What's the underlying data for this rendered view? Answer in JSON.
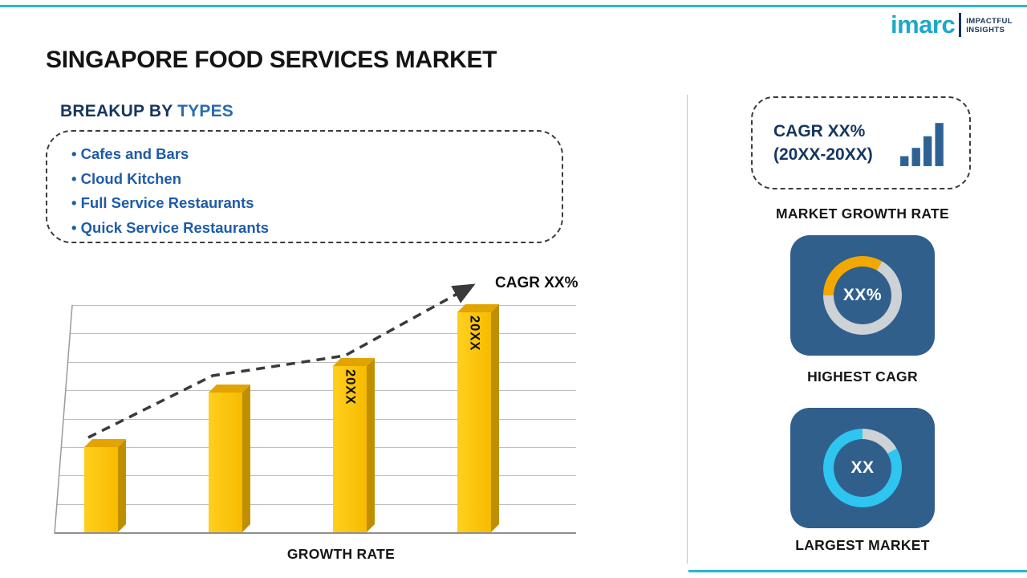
{
  "title": "SINGAPORE FOOD SERVICES MARKET",
  "brand": {
    "logo": "imarc",
    "tagline1": "IMPACTFUL",
    "tagline2": "INSIGHTS"
  },
  "breakup": {
    "heading_prefix": "BREAKUP BY ",
    "heading_highlight": "TYPES",
    "items": [
      "Cafes and Bars",
      "Cloud Kitchen",
      "Full Service Restaurants",
      "Quick Service Restaurants"
    ]
  },
  "chart_data": {
    "type": "bar",
    "categories": [
      "",
      "",
      "20XX",
      "20XX"
    ],
    "values": [
      38,
      62,
      74,
      98
    ],
    "ylim": [
      0,
      100
    ],
    "grid": true,
    "bar_color": "#F9BE00",
    "trend_arrow_label": "CAGR XX%",
    "xlabel": "GROWTH RATE",
    "title": ""
  },
  "right_panel": {
    "growth_box": {
      "line1": "CAGR XX%",
      "line2": "(20XX-20XX)"
    },
    "growth_caption": "MARKET GROWTH RATE",
    "highest_cagr": {
      "value": "XX%",
      "caption": "HIGHEST CAGR",
      "arc_color": "#F2A800",
      "arc_start_deg": -90,
      "arc_span_deg": 120
    },
    "largest_market": {
      "value": "XX",
      "caption": "LARGEST MARKET",
      "arc_color": "#2FC5F1",
      "arc_start_deg": 60,
      "arc_span_deg": 300
    }
  },
  "colors": {
    "accent_teal": "#29B8CE",
    "panel_blue": "#315F8C",
    "list_blue": "#1E5CA8",
    "navy": "#16365F"
  }
}
